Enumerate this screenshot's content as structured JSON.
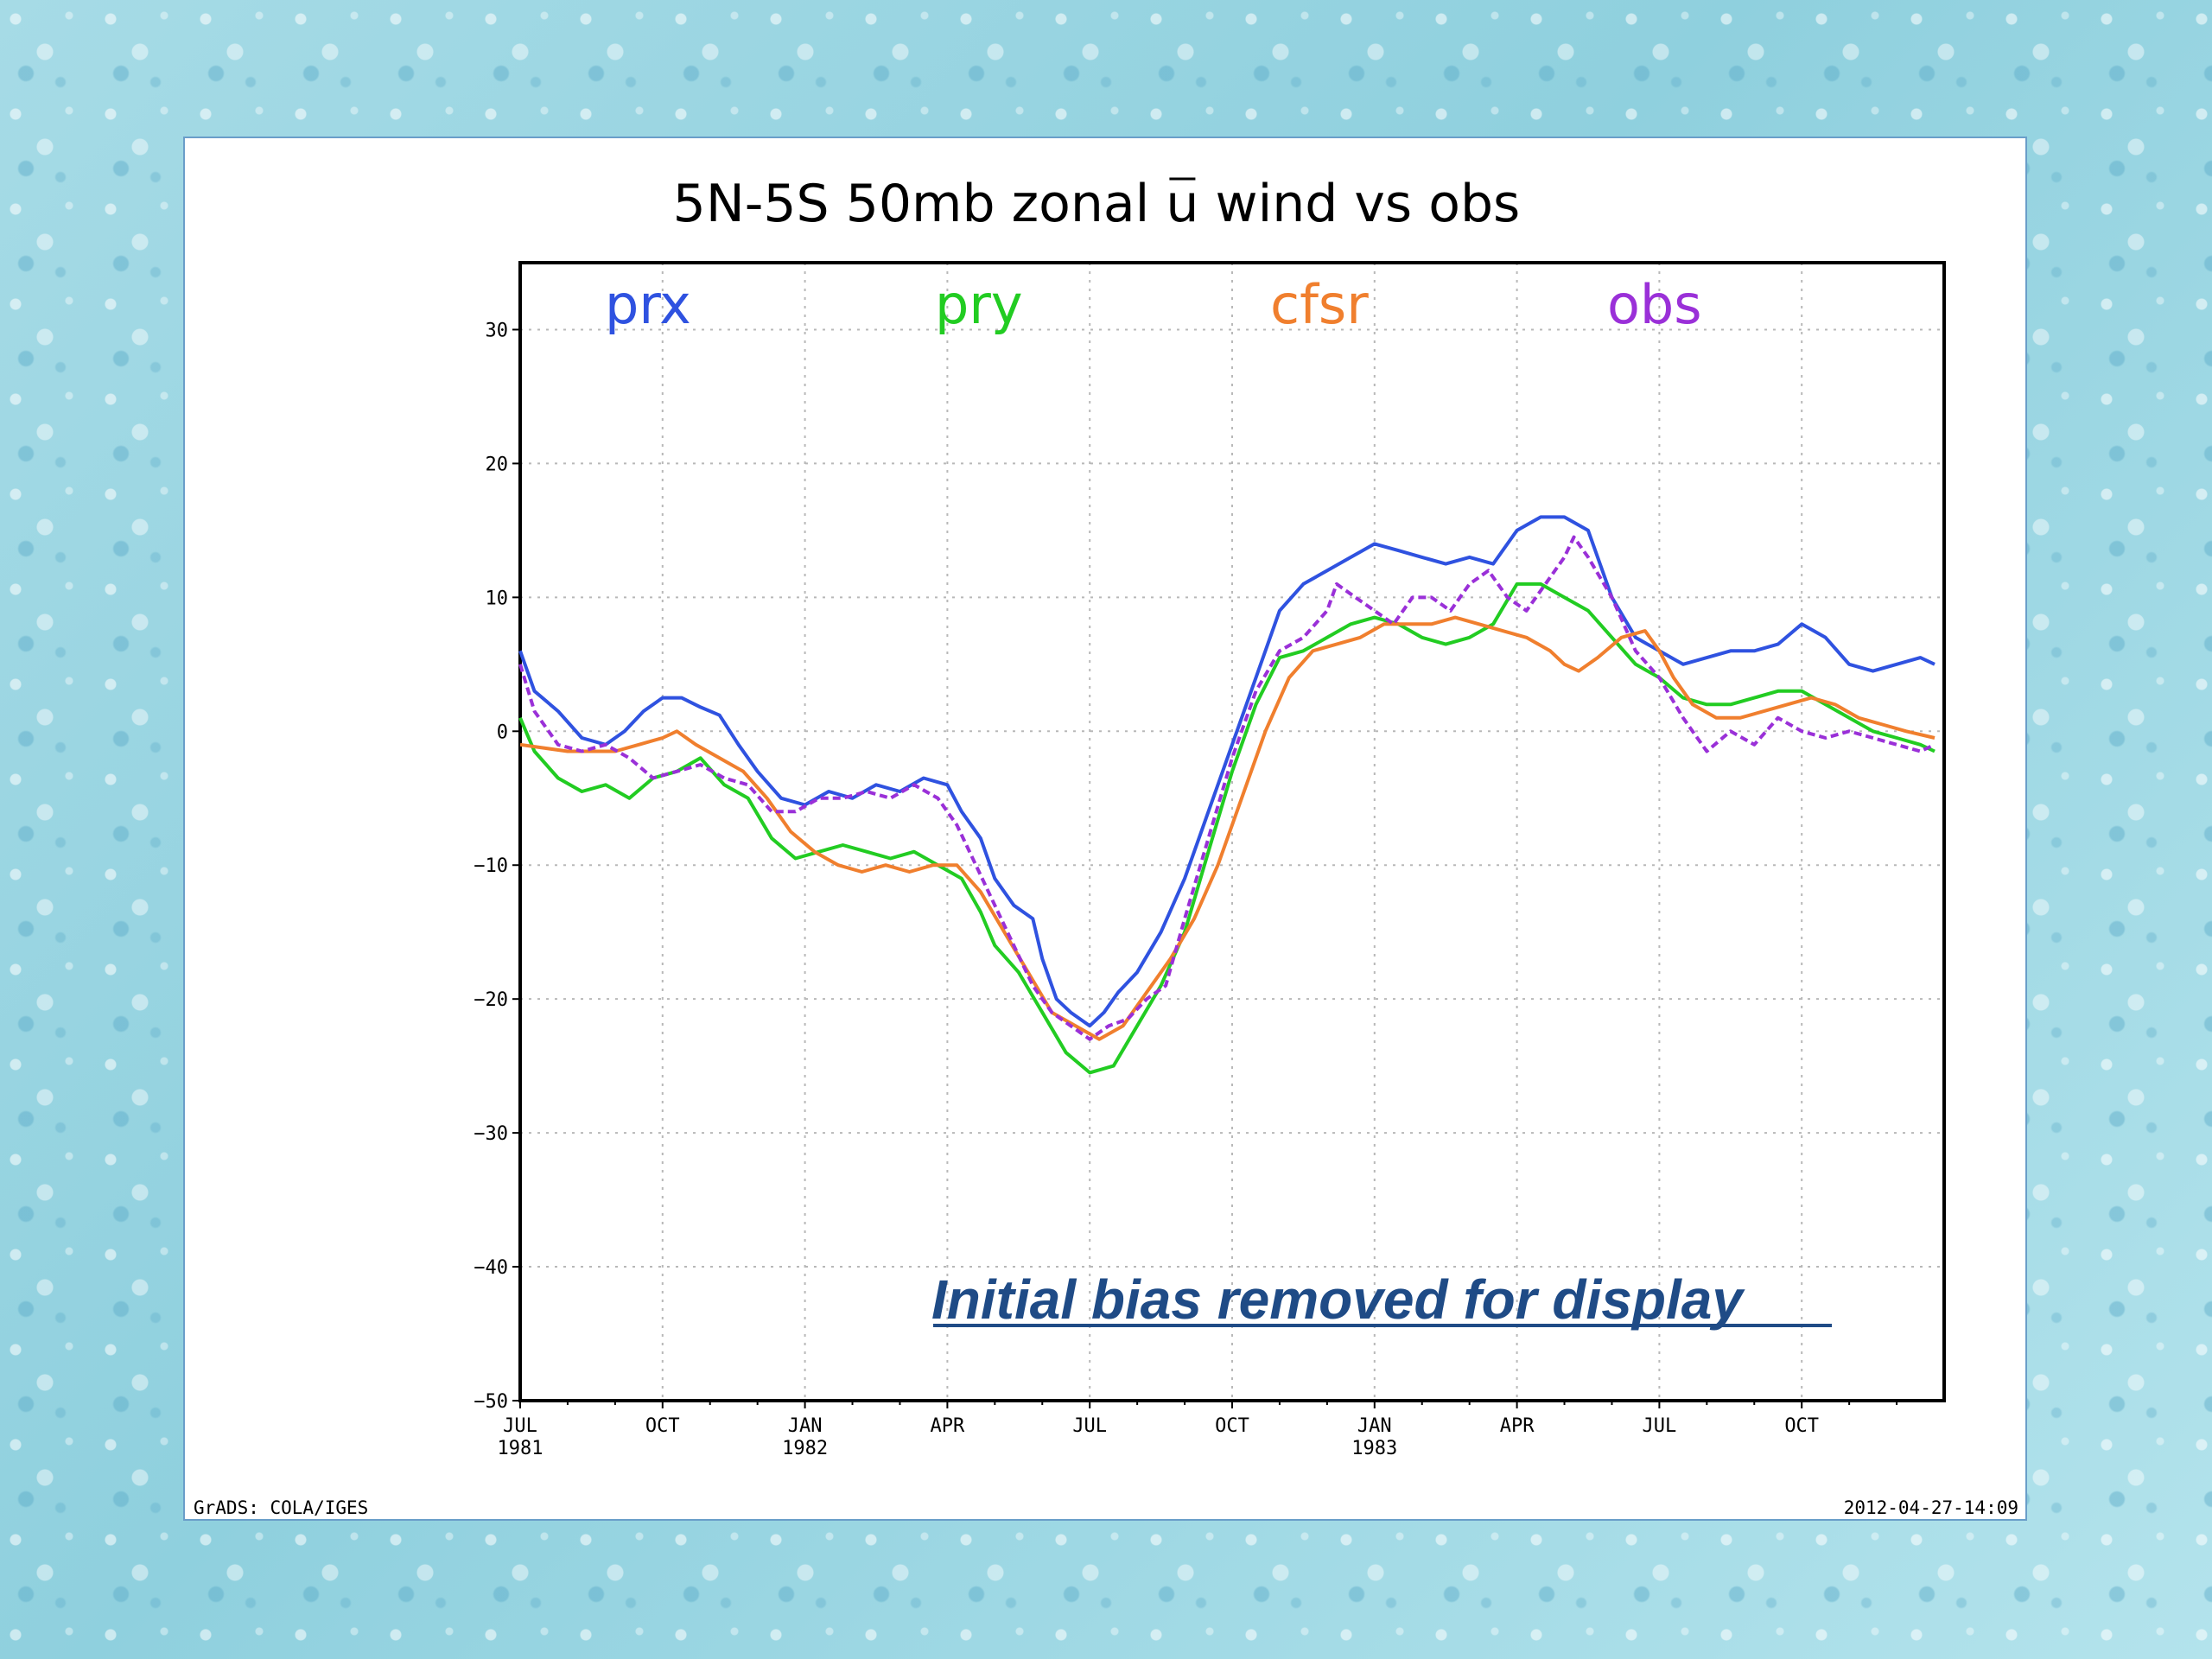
{
  "chart_data": {
    "type": "line",
    "title": "5N-5S 50mb zonal u wind vs obs",
    "title_parts": [
      "5N-5S 50mb zonal ",
      "u",
      " wind vs obs"
    ],
    "annotation": "Initial bias removed for display",
    "footer_left": "GrADS: COLA/IGES",
    "footer_right": "2012-04-27-14:09",
    "xlim": [
      0,
      30
    ],
    "ylim": [
      -50,
      35
    ],
    "grid": true,
    "legend_placement": "top inside",
    "x_unit": "months since JUL 1981",
    "x_ticks": [
      {
        "x": 0,
        "label": "JUL",
        "sub": "1981"
      },
      {
        "x": 3,
        "label": "OCT",
        "sub": ""
      },
      {
        "x": 6,
        "label": "JAN",
        "sub": "1982"
      },
      {
        "x": 9,
        "label": "APR",
        "sub": ""
      },
      {
        "x": 12,
        "label": "JUL",
        "sub": ""
      },
      {
        "x": 15,
        "label": "OCT",
        "sub": ""
      },
      {
        "x": 18,
        "label": "JAN",
        "sub": "1983"
      },
      {
        "x": 21,
        "label": "APR",
        "sub": ""
      },
      {
        "x": 24,
        "label": "JUL",
        "sub": ""
      },
      {
        "x": 27,
        "label": "OCT",
        "sub": ""
      }
    ],
    "y_ticks": [
      30,
      20,
      10,
      0,
      -10,
      -20,
      -30,
      -40,
      -50
    ],
    "series": [
      {
        "name": "prx",
        "color": "#2f52e0",
        "dashed": false,
        "points": [
          [
            0,
            6
          ],
          [
            0.3,
            3
          ],
          [
            0.8,
            1.5
          ],
          [
            1.3,
            -0.5
          ],
          [
            1.8,
            -1
          ],
          [
            2.2,
            0
          ],
          [
            2.6,
            1.5
          ],
          [
            3,
            2.5
          ],
          [
            3.4,
            2.5
          ],
          [
            3.8,
            1.8
          ],
          [
            4.2,
            1.2
          ],
          [
            4.6,
            -1
          ],
          [
            5,
            -3
          ],
          [
            5.5,
            -5
          ],
          [
            6,
            -5.5
          ],
          [
            6.5,
            -4.5
          ],
          [
            7,
            -5
          ],
          [
            7.5,
            -4
          ],
          [
            8,
            -4.5
          ],
          [
            8.5,
            -3.5
          ],
          [
            9,
            -4
          ],
          [
            9.3,
            -6
          ],
          [
            9.7,
            -8
          ],
          [
            10,
            -11
          ],
          [
            10.4,
            -13
          ],
          [
            10.8,
            -14
          ],
          [
            11,
            -17
          ],
          [
            11.3,
            -20
          ],
          [
            11.6,
            -21
          ],
          [
            12,
            -22
          ],
          [
            12.3,
            -21
          ],
          [
            12.6,
            -19.5
          ],
          [
            13,
            -18
          ],
          [
            13.5,
            -15
          ],
          [
            14,
            -11
          ],
          [
            14.5,
            -6
          ],
          [
            15,
            -1
          ],
          [
            15.5,
            4
          ],
          [
            16,
            9
          ],
          [
            16.5,
            11
          ],
          [
            17,
            12
          ],
          [
            17.5,
            13
          ],
          [
            18,
            14
          ],
          [
            18.5,
            13.5
          ],
          [
            19,
            13
          ],
          [
            19.5,
            12.5
          ],
          [
            20,
            13
          ],
          [
            20.5,
            12.5
          ],
          [
            21,
            15
          ],
          [
            21.5,
            16
          ],
          [
            22,
            16
          ],
          [
            22.5,
            15
          ],
          [
            23,
            10
          ],
          [
            23.5,
            7
          ],
          [
            24,
            6
          ],
          [
            24.5,
            5
          ],
          [
            25,
            5.5
          ],
          [
            25.5,
            6
          ],
          [
            26,
            6
          ],
          [
            26.5,
            6.5
          ],
          [
            27,
            8
          ],
          [
            27.5,
            7
          ],
          [
            28,
            5
          ],
          [
            28.5,
            4.5
          ],
          [
            29,
            5
          ],
          [
            29.5,
            5.5
          ],
          [
            29.8,
            5
          ]
        ]
      },
      {
        "name": "pry",
        "color": "#22cc22",
        "dashed": false,
        "points": [
          [
            0,
            1
          ],
          [
            0.3,
            -1.5
          ],
          [
            0.8,
            -3.5
          ],
          [
            1.3,
            -4.5
          ],
          [
            1.8,
            -4
          ],
          [
            2.3,
            -5
          ],
          [
            2.8,
            -3.5
          ],
          [
            3.3,
            -3
          ],
          [
            3.8,
            -2
          ],
          [
            4.3,
            -4
          ],
          [
            4.8,
            -5
          ],
          [
            5.3,
            -8
          ],
          [
            5.8,
            -9.5
          ],
          [
            6.3,
            -9
          ],
          [
            6.8,
            -8.5
          ],
          [
            7.3,
            -9
          ],
          [
            7.8,
            -9.5
          ],
          [
            8.3,
            -9
          ],
          [
            8.8,
            -10
          ],
          [
            9.3,
            -11
          ],
          [
            9.7,
            -13.5
          ],
          [
            10,
            -16
          ],
          [
            10.5,
            -18
          ],
          [
            11,
            -21
          ],
          [
            11.5,
            -24
          ],
          [
            12,
            -25.5
          ],
          [
            12.5,
            -25
          ],
          [
            13,
            -22
          ],
          [
            13.5,
            -19
          ],
          [
            14,
            -15
          ],
          [
            14.5,
            -9
          ],
          [
            15,
            -3
          ],
          [
            15.5,
            2
          ],
          [
            16,
            5.5
          ],
          [
            16.5,
            6
          ],
          [
            17,
            7
          ],
          [
            17.5,
            8
          ],
          [
            18,
            8.5
          ],
          [
            18.5,
            8
          ],
          [
            19,
            7
          ],
          [
            19.5,
            6.5
          ],
          [
            20,
            7
          ],
          [
            20.5,
            8
          ],
          [
            21,
            11
          ],
          [
            21.5,
            11
          ],
          [
            22,
            10
          ],
          [
            22.5,
            9
          ],
          [
            23,
            7
          ],
          [
            23.5,
            5
          ],
          [
            24,
            4
          ],
          [
            24.5,
            2.5
          ],
          [
            25,
            2
          ],
          [
            25.5,
            2
          ],
          [
            26,
            2.5
          ],
          [
            26.5,
            3
          ],
          [
            27,
            3
          ],
          [
            27.5,
            2
          ],
          [
            28,
            1
          ],
          [
            28.5,
            0
          ],
          [
            29,
            -0.5
          ],
          [
            29.5,
            -1
          ],
          [
            29.8,
            -1.5
          ]
        ]
      },
      {
        "name": "cfsr",
        "color": "#f07f2e",
        "dashed": false,
        "points": [
          [
            0,
            -1
          ],
          [
            1,
            -1.5
          ],
          [
            2,
            -1.5
          ],
          [
            2.5,
            -1
          ],
          [
            3,
            -0.5
          ],
          [
            3.3,
            0
          ],
          [
            3.7,
            -1
          ],
          [
            4.2,
            -2
          ],
          [
            4.7,
            -3
          ],
          [
            5.2,
            -5
          ],
          [
            5.7,
            -7.5
          ],
          [
            6.2,
            -9
          ],
          [
            6.7,
            -10
          ],
          [
            7.2,
            -10.5
          ],
          [
            7.7,
            -10
          ],
          [
            8.2,
            -10.5
          ],
          [
            8.7,
            -10
          ],
          [
            9.2,
            -10
          ],
          [
            9.7,
            -12
          ],
          [
            10.2,
            -15
          ],
          [
            10.7,
            -18
          ],
          [
            11.2,
            -21
          ],
          [
            11.7,
            -22
          ],
          [
            12.2,
            -23
          ],
          [
            12.7,
            -22
          ],
          [
            13.2,
            -19.5
          ],
          [
            13.7,
            -17
          ],
          [
            14.2,
            -14
          ],
          [
            14.7,
            -10
          ],
          [
            15.2,
            -5
          ],
          [
            15.7,
            0
          ],
          [
            16.2,
            4
          ],
          [
            16.7,
            6
          ],
          [
            17.2,
            6.5
          ],
          [
            17.7,
            7
          ],
          [
            18.2,
            8
          ],
          [
            18.7,
            8
          ],
          [
            19.2,
            8
          ],
          [
            19.7,
            8.5
          ],
          [
            20.2,
            8
          ],
          [
            20.7,
            7.5
          ],
          [
            21.2,
            7
          ],
          [
            21.7,
            6
          ],
          [
            22,
            5
          ],
          [
            22.3,
            4.5
          ],
          [
            22.7,
            5.5
          ],
          [
            23.2,
            7
          ],
          [
            23.7,
            7.5
          ],
          [
            24,
            6
          ],
          [
            24.3,
            4
          ],
          [
            24.7,
            2
          ],
          [
            25.2,
            1
          ],
          [
            25.7,
            1
          ],
          [
            26.2,
            1.5
          ],
          [
            26.7,
            2
          ],
          [
            27.2,
            2.5
          ],
          [
            27.7,
            2
          ],
          [
            28.2,
            1
          ],
          [
            28.7,
            0.5
          ],
          [
            29.2,
            0
          ],
          [
            29.8,
            -0.5
          ]
        ]
      },
      {
        "name": "obs",
        "color": "#9a30d8",
        "dashed": true,
        "points": [
          [
            0,
            5
          ],
          [
            0.3,
            1.5
          ],
          [
            0.8,
            -1
          ],
          [
            1.3,
            -1.5
          ],
          [
            1.8,
            -1
          ],
          [
            2.3,
            -2
          ],
          [
            2.8,
            -3.5
          ],
          [
            3.3,
            -3
          ],
          [
            3.8,
            -2.5
          ],
          [
            4.3,
            -3.5
          ],
          [
            4.8,
            -4
          ],
          [
            5.3,
            -6
          ],
          [
            5.8,
            -6
          ],
          [
            6.3,
            -5
          ],
          [
            6.8,
            -5
          ],
          [
            7.3,
            -4.5
          ],
          [
            7.8,
            -5
          ],
          [
            8.3,
            -4
          ],
          [
            8.8,
            -5
          ],
          [
            9.2,
            -7
          ],
          [
            9.6,
            -10
          ],
          [
            10,
            -13
          ],
          [
            10.4,
            -16
          ],
          [
            10.8,
            -19
          ],
          [
            11.2,
            -21
          ],
          [
            11.6,
            -22
          ],
          [
            12,
            -23
          ],
          [
            12.4,
            -22
          ],
          [
            12.8,
            -21.5
          ],
          [
            13.2,
            -20
          ],
          [
            13.6,
            -19
          ],
          [
            14,
            -14
          ],
          [
            14.5,
            -8
          ],
          [
            15,
            -2
          ],
          [
            15.5,
            3
          ],
          [
            16,
            6
          ],
          [
            16.5,
            7
          ],
          [
            17,
            9
          ],
          [
            17.2,
            11
          ],
          [
            17.6,
            10
          ],
          [
            18,
            9
          ],
          [
            18.4,
            8
          ],
          [
            18.8,
            10
          ],
          [
            19.2,
            10
          ],
          [
            19.6,
            9
          ],
          [
            20,
            11
          ],
          [
            20.4,
            12
          ],
          [
            20.8,
            10
          ],
          [
            21.2,
            9
          ],
          [
            21.6,
            11
          ],
          [
            22,
            13
          ],
          [
            22.2,
            14.5
          ],
          [
            22.5,
            13
          ],
          [
            23,
            10
          ],
          [
            23.5,
            6
          ],
          [
            24,
            4
          ],
          [
            24.5,
            1
          ],
          [
            25,
            -1.5
          ],
          [
            25.5,
            0
          ],
          [
            26,
            -1
          ],
          [
            26.5,
            1
          ],
          [
            27,
            0
          ],
          [
            27.5,
            -0.5
          ],
          [
            28,
            0
          ],
          [
            28.5,
            -0.5
          ],
          [
            29,
            -1
          ],
          [
            29.5,
            -1.5
          ],
          [
            29.8,
            -1
          ]
        ]
      }
    ]
  }
}
